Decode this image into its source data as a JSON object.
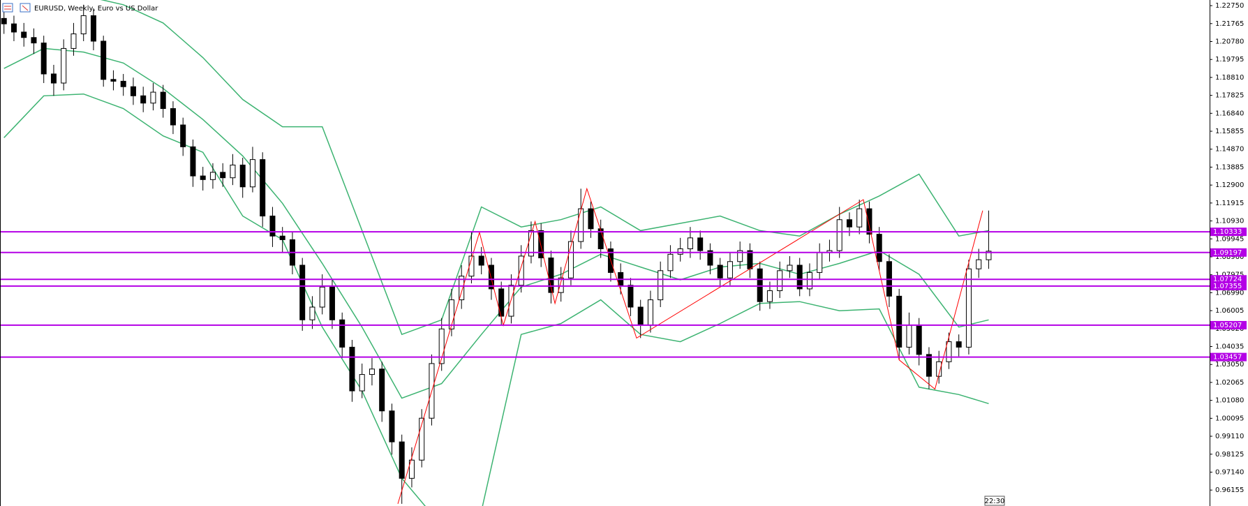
{
  "chart_data": {
    "type": "candlestick",
    "title": "EURUSD, Weekly,  Euro vs US Dollar",
    "time_label": "22:30",
    "ylim": [
      0.9528,
      1.2306
    ],
    "yticks": [
      {
        "value": 1.2275,
        "label": "1.22750"
      },
      1.21765,
      {
        "value": 1.2078,
        "label": "1.20780"
      },
      1.19795,
      {
        "value": 1.1881,
        "label": "1.18810"
      },
      1.17825,
      {
        "value": 1.1684,
        "label": "1.16840"
      },
      1.15855,
      {
        "value": 1.1487,
        "label": "1.14870"
      },
      1.13885,
      {
        "value": 1.129,
        "label": "1.12900"
      },
      1.11915,
      {
        "value": 1.1093,
        "label": "1.10930"
      },
      1.09945,
      {
        "value": 1.0896,
        "label": "1.08960"
      },
      1.07975,
      {
        "value": 1.0699,
        "label": "1.06990"
      },
      1.06005,
      {
        "value": 1.0502,
        "label": "1.05020"
      },
      1.04035,
      {
        "value": 1.0305,
        "label": "1.03050"
      },
      1.02065,
      {
        "value": 1.0108,
        "label": "1.01080"
      },
      1.00095,
      {
        "value": 0.9911,
        "label": "0.99110"
      },
      0.98125,
      {
        "value": 0.9714,
        "label": "0.97140"
      },
      0.96155
    ],
    "bull_color": "#ffffff",
    "bear_color": "#000000",
    "open": [
      1.2205,
      1.2175,
      1.213,
      1.21,
      1.207,
      1.19,
      1.185,
      1.204,
      1.212,
      1.222,
      1.208,
      1.187,
      1.186,
      1.183,
      1.178,
      1.174,
      1.18,
      1.171,
      1.162,
      1.15,
      1.134,
      1.132,
      1.136,
      1.133,
      1.14,
      1.128,
      1.143,
      1.112,
      1.101,
      1.099,
      1.085,
      1.055,
      1.062,
      1.073,
      1.055,
      1.04,
      1.016,
      1.025,
      1.028,
      1.005,
      0.988,
      0.968,
      0.978,
      1.001,
      1.031,
      1.05,
      1.066,
      1.079,
      1.09,
      1.085,
      1.072,
      1.057,
      1.074,
      1.09,
      1.104,
      1.089,
      1.07,
      1.078,
      1.098,
      1.116,
      1.105,
      1.094,
      1.081,
      1.074,
      1.062,
      1.052,
      1.066,
      1.082,
      1.091,
      1.094,
      1.1,
      1.093,
      1.085,
      1.078,
      1.087,
      1.093,
      1.083,
      1.065,
      1.071,
      1.082,
      1.085,
      1.072,
      1.081,
      1.092,
      1.093,
      1.11,
      1.106,
      1.116,
      1.102,
      1.087,
      1.068,
      1.04,
      1.052,
      1.036,
      1.024,
      1.032,
      1.043,
      1.04,
      1.083,
      1.088
    ],
    "high": [
      1.226,
      1.222,
      1.218,
      1.215,
      1.211,
      1.195,
      1.209,
      1.218,
      1.228,
      1.226,
      1.211,
      1.192,
      1.19,
      1.188,
      1.183,
      1.185,
      1.184,
      1.175,
      1.166,
      1.154,
      1.139,
      1.141,
      1.141,
      1.146,
      1.144,
      1.15,
      1.147,
      1.117,
      1.106,
      1.103,
      1.089,
      1.068,
      1.08,
      1.077,
      1.059,
      1.044,
      1.031,
      1.034,
      1.032,
      1.009,
      0.992,
      0.985,
      1.006,
      1.036,
      1.056,
      1.072,
      1.085,
      1.103,
      1.095,
      1.089,
      1.076,
      1.08,
      1.096,
      1.109,
      1.108,
      1.093,
      1.084,
      1.104,
      1.127,
      1.12,
      1.11,
      1.098,
      1.086,
      1.078,
      1.066,
      1.071,
      1.087,
      1.096,
      1.1,
      1.106,
      1.104,
      1.097,
      1.089,
      1.092,
      1.098,
      1.097,
      1.087,
      1.076,
      1.087,
      1.09,
      1.089,
      1.086,
      1.097,
      1.099,
      1.117,
      1.114,
      1.121,
      1.12,
      1.106,
      1.091,
      1.072,
      1.059,
      1.056,
      1.04,
      1.038,
      1.048,
      1.047,
      1.088,
      1.094,
      1.115
    ],
    "low": [
      1.212,
      1.208,
      1.205,
      1.201,
      1.185,
      1.178,
      1.181,
      1.2,
      1.208,
      1.203,
      1.183,
      1.181,
      1.178,
      1.173,
      1.169,
      1.17,
      1.166,
      1.157,
      1.145,
      1.128,
      1.126,
      1.127,
      1.128,
      1.129,
      1.122,
      1.125,
      1.106,
      1.095,
      1.092,
      1.08,
      1.049,
      1.05,
      1.058,
      1.05,
      1.034,
      1.01,
      1.012,
      1.019,
      0.999,
      0.981,
      0.954,
      0.963,
      0.974,
      0.997,
      1.027,
      1.046,
      1.061,
      1.075,
      1.08,
      1.066,
      1.052,
      1.053,
      1.07,
      1.086,
      1.084,
      1.064,
      1.065,
      1.074,
      1.094,
      1.1,
      1.089,
      1.076,
      1.069,
      1.057,
      1.045,
      1.048,
      1.062,
      1.078,
      1.087,
      1.089,
      1.088,
      1.08,
      1.073,
      1.074,
      1.083,
      1.078,
      1.06,
      1.061,
      1.067,
      1.078,
      1.068,
      1.068,
      1.077,
      1.087,
      1.089,
      1.101,
      1.102,
      1.097,
      1.082,
      1.062,
      1.033,
      1.036,
      1.03,
      1.017,
      1.02,
      1.028,
      1.035,
      1.036,
      1.078,
      1.083
    ],
    "close": [
      1.2175,
      1.213,
      1.21,
      1.207,
      1.19,
      1.185,
      1.204,
      1.212,
      1.222,
      1.208,
      1.187,
      1.186,
      1.183,
      1.178,
      1.174,
      1.18,
      1.171,
      1.162,
      1.15,
      1.134,
      1.132,
      1.136,
      1.133,
      1.14,
      1.128,
      1.143,
      1.112,
      1.101,
      1.099,
      1.085,
      1.055,
      1.062,
      1.073,
      1.055,
      1.04,
      1.016,
      1.025,
      1.028,
      1.005,
      0.988,
      0.968,
      0.978,
      1.001,
      1.031,
      1.05,
      1.066,
      1.079,
      1.09,
      1.085,
      1.072,
      1.057,
      1.074,
      1.09,
      1.104,
      1.089,
      1.07,
      1.078,
      1.098,
      1.116,
      1.105,
      1.094,
      1.081,
      1.074,
      1.062,
      1.052,
      1.066,
      1.082,
      1.091,
      1.094,
      1.1,
      1.093,
      1.085,
      1.078,
      1.087,
      1.093,
      1.083,
      1.065,
      1.071,
      1.082,
      1.085,
      1.072,
      1.081,
      1.092,
      1.093,
      1.11,
      1.106,
      1.116,
      1.102,
      1.087,
      1.068,
      1.04,
      1.052,
      1.036,
      1.024,
      1.032,
      1.043,
      1.04,
      1.083,
      1.088,
      1.0927
    ],
    "bands": [
      {
        "color": "#3cb371",
        "x": [
          0,
          4,
          8,
          12,
          16,
          20,
          24,
          28,
          32,
          36,
          40,
          44,
          48,
          52,
          56,
          60,
          64,
          68,
          72,
          76,
          80,
          84,
          88,
          92,
          96,
          99
        ],
        "values": [
          1.257,
          1.248,
          1.233,
          1.228,
          1.218,
          1.199,
          1.176,
          1.161,
          1.161,
          1.104,
          1.047,
          1.055,
          1.117,
          1.106,
          1.11,
          1.117,
          1.104,
          1.108,
          1.112,
          1.104,
          1.101,
          1.113,
          1.123,
          1.135,
          1.101,
          1.104
        ]
      },
      {
        "color": "#3cb371",
        "x": [
          0,
          4,
          8,
          12,
          16,
          20,
          24,
          28,
          32,
          36,
          40,
          44,
          48,
          52,
          56,
          60,
          64,
          68,
          72,
          76,
          80,
          84,
          88,
          92,
          96,
          99
        ],
        "values": [
          1.193,
          1.204,
          1.202,
          1.196,
          1.182,
          1.165,
          1.145,
          1.119,
          1.086,
          1.051,
          1.012,
          1.02,
          1.047,
          1.073,
          1.08,
          1.091,
          1.084,
          1.077,
          1.084,
          1.086,
          1.08,
          1.086,
          1.093,
          1.08,
          1.051,
          1.055
        ]
      },
      {
        "color": "#3cb371",
        "x": [
          0,
          4,
          8,
          12,
          16,
          20,
          24,
          28,
          32,
          36,
          40,
          44,
          48,
          52,
          56,
          60,
          64,
          68,
          72,
          76,
          80,
          84,
          88,
          92,
          96,
          99
        ],
        "values": [
          1.155,
          1.178,
          1.179,
          1.171,
          1.156,
          1.147,
          1.112,
          1.099,
          1.051,
          1.016,
          0.968,
          0.942,
          0.95,
          1.047,
          1.053,
          1.066,
          1.047,
          1.043,
          1.053,
          1.064,
          1.065,
          1.06,
          1.061,
          1.018,
          1.014,
          1.009
        ]
      }
    ],
    "zigzag": {
      "color": "#ff0000",
      "x": [
        39.6,
        47.8,
        50.2,
        53.4,
        55.4,
        58.6,
        63.6,
        86.4,
        90,
        93.6,
        98.4
      ],
      "values": [
        0.954,
        1.103,
        1.052,
        1.109,
        1.064,
        1.127,
        1.045,
        1.121,
        1.033,
        1.017,
        1.115
      ]
    },
    "levels": {
      "color": "#b400e6",
      "values": [
        1.10333,
        1.09197,
        1.07724,
        1.07355,
        1.05207,
        1.03457
      ]
    }
  }
}
